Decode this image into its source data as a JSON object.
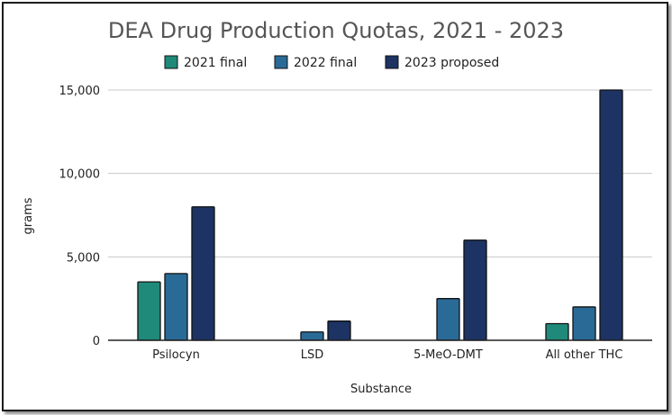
{
  "chart_data": {
    "type": "bar",
    "title": "DEA Drug Production Quotas, 2021 - 2023",
    "xlabel": "Substance",
    "ylabel": "grams",
    "categories": [
      "Psilocyn",
      "LSD",
      "5-MeO-DMT",
      "All other THC"
    ],
    "series": [
      {
        "name": "2021 final",
        "color": "#1f8a7a",
        "values": [
          3500,
          0,
          0,
          1000
        ]
      },
      {
        "name": "2022 final",
        "color": "#2a6a96",
        "values": [
          4000,
          500,
          2500,
          2000
        ]
      },
      {
        "name": "2023 proposed",
        "color": "#1c3363",
        "values": [
          8000,
          1150,
          6000,
          15000
        ]
      }
    ],
    "ylim": [
      0,
      15000
    ],
    "yticks": [
      0,
      5000,
      10000,
      15000
    ],
    "ytick_labels": [
      "0",
      "5,000",
      "10,000",
      "15,000"
    ],
    "grid": true,
    "legend_position": "top-center"
  }
}
